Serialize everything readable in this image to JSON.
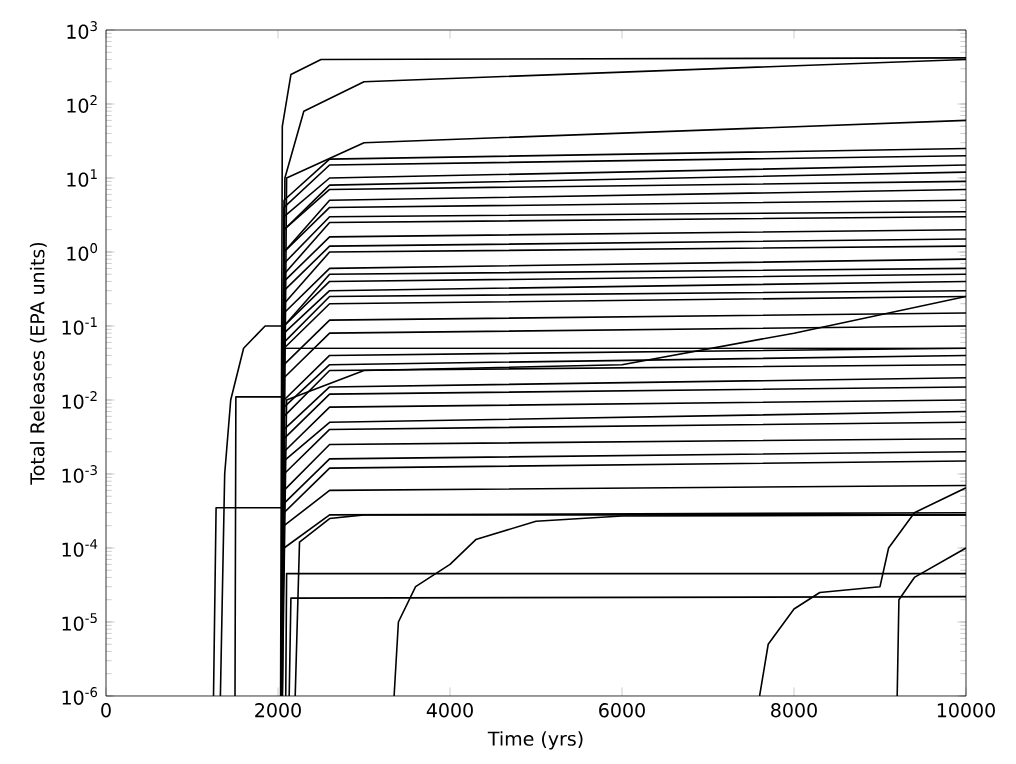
{
  "chart_data": {
    "type": "line",
    "log": "y",
    "xlabel": "Time (yrs)",
    "ylabel": "Total Releases (EPA units)",
    "xlim": [
      0,
      10000
    ],
    "ylim": [
      1e-06,
      1000
    ],
    "xticks": [
      0,
      2000,
      4000,
      6000,
      8000,
      10000
    ],
    "yticks": [
      {
        "value": 1e-06,
        "label": "10$^{-6}$"
      },
      {
        "value": 1e-05,
        "label": "10$^{-5}$"
      },
      {
        "value": 0.0001,
        "label": "10$^{-4}$"
      },
      {
        "value": 0.001,
        "label": "10$^{-3}$"
      },
      {
        "value": 0.01,
        "label": "10$^{-2}$"
      },
      {
        "value": 0.1,
        "label": "10$^{-1}$"
      },
      {
        "value": 1,
        "label": "10$^{0}$"
      },
      {
        "value": 10,
        "label": "10$^{1}$"
      },
      {
        "value": 100,
        "label": "10$^{2}$"
      },
      {
        "value": 1000,
        "label": "10$^{3}$"
      }
    ],
    "series": [
      {
        "color": "#000000",
        "x": [
          2030,
          2050,
          2150,
          2500,
          10000
        ],
        "values": [
          1e-06,
          50,
          250,
          400,
          420
        ]
      },
      {
        "color": "#000000",
        "x": [
          2050,
          2080,
          2300,
          3000,
          10000
        ],
        "values": [
          1e-06,
          10,
          80,
          200,
          400
        ]
      },
      {
        "color": "#000000",
        "x": [
          2050,
          2100,
          3000,
          10000
        ],
        "values": [
          1e-06,
          10,
          30,
          60
        ]
      },
      {
        "color": "#000000",
        "x": [
          2040,
          2070,
          2600,
          10000
        ],
        "values": [
          1e-06,
          5,
          18,
          25
        ]
      },
      {
        "color": "#000000",
        "x": [
          2040,
          2070,
          2600,
          10000
        ],
        "values": [
          1e-06,
          4,
          15,
          20
        ]
      },
      {
        "color": "#000000",
        "x": [
          2040,
          2070,
          2600,
          10000
        ],
        "values": [
          1e-06,
          3,
          10,
          15
        ]
      },
      {
        "color": "#000000",
        "x": [
          2040,
          2070,
          2600,
          10000
        ],
        "values": [
          1e-06,
          2,
          8,
          12
        ]
      },
      {
        "color": "#000000",
        "x": [
          2040,
          2070,
          2600,
          10000
        ],
        "values": [
          1e-06,
          2,
          7,
          9
        ]
      },
      {
        "color": "#000000",
        "x": [
          2040,
          2070,
          2600,
          10000
        ],
        "values": [
          1e-06,
          1,
          5,
          7
        ]
      },
      {
        "color": "#000000",
        "x": [
          2040,
          2070,
          2600,
          10000
        ],
        "values": [
          1e-06,
          1,
          4,
          5
        ]
      },
      {
        "color": "#000000",
        "x": [
          2040,
          2070,
          2600,
          10000
        ],
        "values": [
          1e-06,
          0.7,
          3,
          3.5
        ]
      },
      {
        "color": "#000000",
        "x": [
          2040,
          2070,
          2600,
          10000
        ],
        "values": [
          1e-06,
          0.5,
          2.5,
          3
        ]
      },
      {
        "color": "#000000",
        "x": [
          2040,
          2070,
          2600,
          10000
        ],
        "values": [
          1e-06,
          0.4,
          1.6,
          2
        ]
      },
      {
        "color": "#000000",
        "x": [
          2040,
          2070,
          2600,
          10000
        ],
        "values": [
          1e-06,
          0.3,
          1.2,
          1.5
        ]
      },
      {
        "color": "#000000",
        "x": [
          2040,
          2070,
          2600,
          10000
        ],
        "values": [
          1e-06,
          0.2,
          1,
          1.2
        ]
      },
      {
        "color": "#000000",
        "x": [
          2040,
          2070,
          2600,
          10000
        ],
        "values": [
          1e-06,
          0.15,
          0.6,
          0.8
        ]
      },
      {
        "color": "#000000",
        "x": [
          2040,
          2070,
          2600,
          10000
        ],
        "values": [
          1e-06,
          0.1,
          0.5,
          0.6
        ]
      },
      {
        "color": "#000000",
        "x": [
          2040,
          2070,
          2600,
          10000
        ],
        "values": [
          1e-06,
          0.1,
          0.4,
          0.5
        ]
      },
      {
        "color": "#000000",
        "x": [
          2040,
          2070,
          2600,
          10000
        ],
        "values": [
          1e-06,
          0.08,
          0.3,
          0.4
        ]
      },
      {
        "color": "#000000",
        "x": [
          2040,
          2070,
          2600,
          10000
        ],
        "values": [
          1e-06,
          0.06,
          0.25,
          0.3
        ]
      },
      {
        "color": "#000000",
        "x": [
          2040,
          2070,
          2600,
          10000
        ],
        "values": [
          1e-06,
          0.05,
          0.2,
          0.25
        ]
      },
      {
        "color": "#000000",
        "x": [
          2040,
          2070,
          2600,
          10000
        ],
        "values": [
          1e-06,
          0.03,
          0.12,
          0.15
        ]
      },
      {
        "color": "#000000",
        "x": [
          2040,
          2070,
          2600,
          10000
        ],
        "values": [
          1e-06,
          0.02,
          0.08,
          0.1
        ]
      },
      {
        "color": "#000000",
        "x": [
          2040,
          2070,
          2600,
          10000
        ],
        "values": [
          1e-06,
          0.01,
          0.04,
          0.05
        ]
      },
      {
        "color": "#000000",
        "x": [
          2040,
          2070,
          2600,
          10000
        ],
        "values": [
          1e-06,
          0.008,
          0.03,
          0.04
        ]
      },
      {
        "color": "#000000",
        "x": [
          2040,
          2070,
          2600,
          10000
        ],
        "values": [
          1e-06,
          0.006,
          0.025,
          0.03
        ]
      },
      {
        "color": "#000000",
        "x": [
          2040,
          2070,
          2600,
          10000
        ],
        "values": [
          1e-06,
          0.004,
          0.015,
          0.02
        ]
      },
      {
        "color": "#000000",
        "x": [
          2040,
          2070,
          2600,
          10000
        ],
        "values": [
          1e-06,
          0.003,
          0.012,
          0.015
        ]
      },
      {
        "color": "#000000",
        "x": [
          2040,
          2070,
          2600,
          10000
        ],
        "values": [
          1e-06,
          0.002,
          0.008,
          0.01
        ]
      },
      {
        "color": "#000000",
        "x": [
          2040,
          2070,
          2600,
          10000
        ],
        "values": [
          1e-06,
          0.0015,
          0.005,
          0.007
        ]
      },
      {
        "color": "#000000",
        "x": [
          2040,
          2070,
          2600,
          10000
        ],
        "values": [
          1e-06,
          0.001,
          0.004,
          0.005
        ]
      },
      {
        "color": "#000000",
        "x": [
          2040,
          2070,
          2600,
          10000
        ],
        "values": [
          1e-06,
          0.0006,
          0.0025,
          0.003
        ]
      },
      {
        "color": "#000000",
        "x": [
          2040,
          2070,
          2600,
          10000
        ],
        "values": [
          1e-06,
          0.0004,
          0.0016,
          0.002
        ]
      },
      {
        "color": "#000000",
        "x": [
          2040,
          2070,
          2600,
          10000
        ],
        "values": [
          1e-06,
          0.0003,
          0.0012,
          0.0015
        ]
      },
      {
        "color": "#000000",
        "x": [
          2040,
          2070,
          2600,
          10000
        ],
        "values": [
          1e-06,
          0.0002,
          0.0006,
          0.0007
        ]
      },
      {
        "color": "#000000",
        "x": [
          2040,
          2070,
          2600,
          10000
        ],
        "values": [
          1e-06,
          0.0001,
          0.00028,
          0.0003
        ]
      },
      {
        "color": "#000000",
        "x": [
          2090,
          2100,
          10000
        ],
        "values": [
          1e-06,
          4.5e-05,
          4.5e-05
        ]
      },
      {
        "color": "#000000",
        "x": [
          2130,
          2150,
          10000
        ],
        "values": [
          1e-06,
          2.1e-05,
          2.2e-05
        ]
      },
      {
        "color": "#000000",
        "x": [
          2200,
          2250,
          2600,
          3000,
          10000
        ],
        "values": [
          1e-06,
          0.00012,
          0.00025,
          0.00028,
          0.00028
        ]
      },
      {
        "color": "#000000",
        "x": [
          1250,
          1280,
          2050,
          2070,
          10000
        ],
        "values": [
          1e-06,
          0.00035,
          0.00035,
          0.05,
          0.05
        ]
      },
      {
        "color": "#000000",
        "x": [
          1330,
          1380,
          1450,
          1600,
          1850,
          2050
        ],
        "values": [
          1e-06,
          0.001,
          0.01,
          0.05,
          0.1,
          0.1
        ]
      },
      {
        "color": "#000000",
        "x": [
          1500,
          1510,
          2050
        ],
        "values": [
          1e-06,
          0.011,
          0.011
        ]
      },
      {
        "color": "#000000",
        "x": [
          2050,
          2100,
          3000,
          6000,
          8000,
          10000
        ],
        "values": [
          1e-06,
          0.01,
          0.025,
          0.03,
          0.08,
          0.25
        ]
      },
      {
        "color": "#000000",
        "x": [
          3350,
          3400,
          3600,
          4000,
          4300,
          5000,
          6000,
          10000
        ],
        "values": [
          1e-06,
          1e-05,
          3e-05,
          6e-05,
          0.00013,
          0.00023,
          0.00027,
          0.00028
        ]
      },
      {
        "color": "#000000",
        "x": [
          7600,
          7700,
          8000,
          8300,
          9000,
          9100,
          9400,
          10000
        ],
        "values": [
          1e-06,
          5e-06,
          1.5e-05,
          2.5e-05,
          3e-05,
          0.0001,
          0.0003,
          0.00065
        ]
      },
      {
        "color": "#000000",
        "x": [
          9200,
          9220,
          9400,
          10000
        ],
        "values": [
          1e-06,
          2e-05,
          4e-05,
          0.0001
        ]
      }
    ]
  }
}
